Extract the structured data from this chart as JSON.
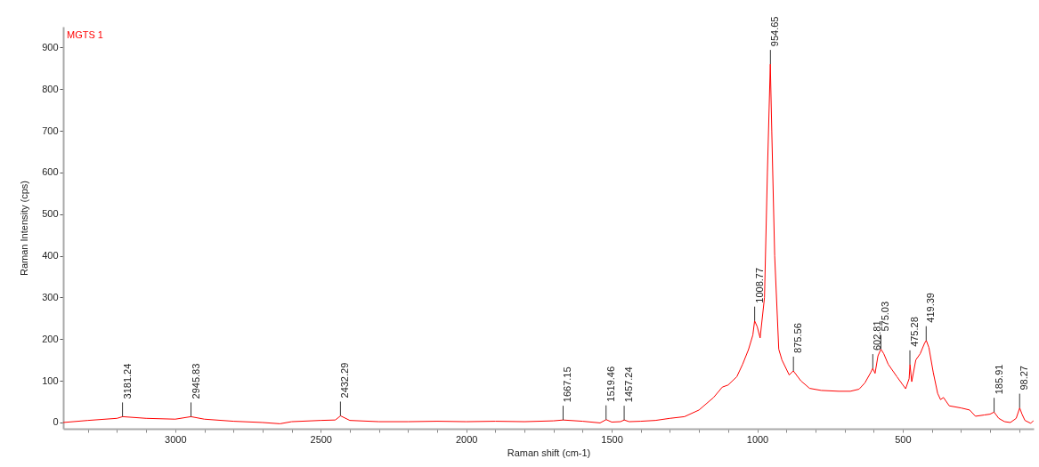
{
  "chart_data": {
    "type": "line",
    "xlabel": "Raman shift (cm-1)",
    "ylabel": "Raman Intensity (cps)",
    "xlim": [
      3385,
      50
    ],
    "ylim": [
      -15,
      950
    ],
    "xticks": [
      {
        "value": 3300,
        "label": null
      },
      {
        "value": 3200,
        "label": null
      },
      {
        "value": 3100,
        "label": null
      },
      3000,
      {
        "value": 2900,
        "label": null
      },
      {
        "value": 2800,
        "label": null
      },
      {
        "value": 2700,
        "label": null
      },
      {
        "value": 2600,
        "label": null
      },
      2500,
      {
        "value": 2400,
        "label": null
      },
      {
        "value": 2300,
        "label": null
      },
      {
        "value": 2200,
        "label": null
      },
      {
        "value": 2100,
        "label": null
      },
      2000,
      {
        "value": 1900,
        "label": null
      },
      {
        "value": 1800,
        "label": null
      },
      {
        "value": 1700,
        "label": null
      },
      {
        "value": 1600,
        "label": null
      },
      1500,
      {
        "value": 1400,
        "label": null
      },
      {
        "value": 1300,
        "label": null
      },
      {
        "value": 1200,
        "label": null
      },
      {
        "value": 1100,
        "label": null
      },
      1000,
      {
        "value": 900,
        "label": null
      },
      {
        "value": 800,
        "label": null
      },
      {
        "value": 700,
        "label": null
      },
      {
        "value": 600,
        "label": null
      },
      500,
      {
        "value": 400,
        "label": null
      },
      {
        "value": 300,
        "label": null
      },
      {
        "value": 200,
        "label": null
      },
      {
        "value": 100,
        "label": null
      }
    ],
    "yticks": [
      0,
      100,
      200,
      300,
      400,
      500,
      600,
      700,
      800,
      900
    ],
    "grid": false,
    "series": [
      {
        "name": "MGTS 1",
        "color": "#ff0000",
        "x": [
          3385,
          3300,
          3200,
          3181,
          3100,
          3000,
          2946,
          2900,
          2800,
          2700,
          2640,
          2600,
          2500,
          2450,
          2432,
          2400,
          2300,
          2200,
          2100,
          2000,
          1900,
          1800,
          1700,
          1667,
          1600,
          1540,
          1519,
          1500,
          1470,
          1457,
          1440,
          1400,
          1350,
          1300,
          1250,
          1200,
          1150,
          1120,
          1100,
          1070,
          1050,
          1030,
          1015,
          1009,
          1000,
          990,
          975,
          965,
          955,
          950,
          940,
          926,
          915,
          890,
          876,
          850,
          820,
          780,
          720,
          680,
          650,
          630,
          610,
          603,
          595,
          585,
          575,
          565,
          550,
          520,
          490,
          478,
          475,
          469,
          455,
          440,
          425,
          419,
          410,
          395,
          380,
          370,
          360,
          340,
          300,
          270,
          250,
          220,
          200,
          186,
          170,
          150,
          130,
          110,
          98,
          90,
          80,
          60,
          50
        ],
        "values": [
          0,
          5,
          10,
          14,
          10,
          8,
          14,
          8,
          3,
          0,
          -3,
          2,
          5,
          6,
          16,
          5,
          2,
          2,
          3,
          2,
          3,
          2,
          4,
          6,
          3,
          -1,
          7,
          1,
          2,
          6,
          2,
          3,
          5,
          10,
          14,
          30,
          60,
          85,
          90,
          110,
          140,
          175,
          210,
          244,
          230,
          203,
          300,
          600,
          860,
          700,
          400,
          176,
          150,
          114,
          124,
          100,
          82,
          77,
          75,
          75,
          80,
          95,
          120,
          130,
          118,
          160,
          176,
          165,
          140,
          110,
          81,
          105,
          139,
          98,
          150,
          165,
          190,
          197,
          180,
          120,
          70,
          55,
          60,
          40,
          35,
          30,
          15,
          18,
          20,
          25,
          10,
          2,
          0,
          10,
          35,
          20,
          5,
          -2,
          5
        ]
      }
    ],
    "annotations": [
      {
        "text": "3181.24",
        "x": 3181.24,
        "y": 14
      },
      {
        "text": "2945.83",
        "x": 2945.83,
        "y": 14
      },
      {
        "text": "2432.29",
        "x": 2432.29,
        "y": 16
      },
      {
        "text": "1667.15",
        "x": 1667.15,
        "y": 6
      },
      {
        "text": "1519.46",
        "x": 1519.46,
        "y": 7
      },
      {
        "text": "1457.24",
        "x": 1457.24,
        "y": 6
      },
      {
        "text": "1008.77",
        "x": 1008.77,
        "y": 244
      },
      {
        "text": "954.65",
        "x": 954.65,
        "y": 860
      },
      {
        "text": "875.56",
        "x": 875.56,
        "y": 124
      },
      {
        "text": "602.81",
        "x": 602.81,
        "y": 130
      },
      {
        "text": "575.03",
        "x": 575.03,
        "y": 176
      },
      {
        "text": "475.28",
        "x": 475.28,
        "y": 139
      },
      {
        "text": "419.39",
        "x": 419.39,
        "y": 197
      },
      {
        "text": "185.91",
        "x": 185.91,
        "y": 25
      },
      {
        "text": "98.27",
        "x": 98.27,
        "y": 35
      }
    ]
  }
}
